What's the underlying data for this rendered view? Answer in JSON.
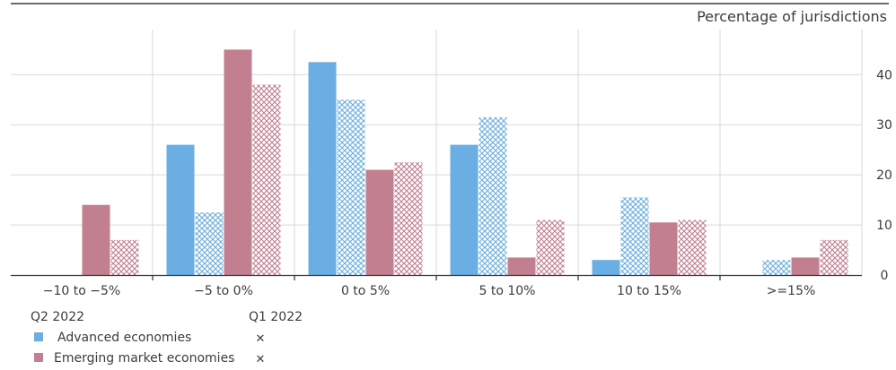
{
  "colors": {
    "advanced": "#6aaee3",
    "emerging": "#c17f8f",
    "grid": "#d9d9d9",
    "axis": "#3c3c3c",
    "text": "#3c3c3c"
  },
  "chart_data": {
    "type": "bar",
    "title": "",
    "ylabel": "Percentage of jurisdictions",
    "xlabel": "",
    "ylim": [
      0,
      49
    ],
    "yticks": [
      0,
      10,
      20,
      30,
      40
    ],
    "grid": true,
    "categories": [
      "−10 to −5%",
      "−5 to 0%",
      "0 to 5%",
      "5 to 10%",
      "10 to 15%",
      ">=15%"
    ],
    "series": [
      {
        "name": "Advanced economies",
        "period": "Q2 2022",
        "pattern": "solid",
        "color_key": "advanced",
        "values": [
          0,
          26,
          42.5,
          26,
          3,
          0
        ]
      },
      {
        "name": "Advanced economies",
        "period": "Q1 2022",
        "pattern": "hatched",
        "color_key": "advanced",
        "values": [
          0,
          12.5,
          35,
          31.5,
          15.5,
          3
        ]
      },
      {
        "name": "Emerging market economies",
        "period": "Q2 2022",
        "pattern": "solid",
        "color_key": "emerging",
        "values": [
          14,
          45,
          21,
          3.5,
          10.5,
          3.5
        ]
      },
      {
        "name": "Emerging market economies",
        "period": "Q1 2022",
        "pattern": "hatched",
        "color_key": "emerging",
        "values": [
          7,
          38,
          22.5,
          11,
          11,
          7
        ]
      }
    ],
    "legend": {
      "placement": "bottom-left",
      "col_headers": [
        "Q2 2022",
        "Q1 2022"
      ],
      "rows": [
        "Advanced economies",
        "Emerging market economies"
      ]
    }
  }
}
